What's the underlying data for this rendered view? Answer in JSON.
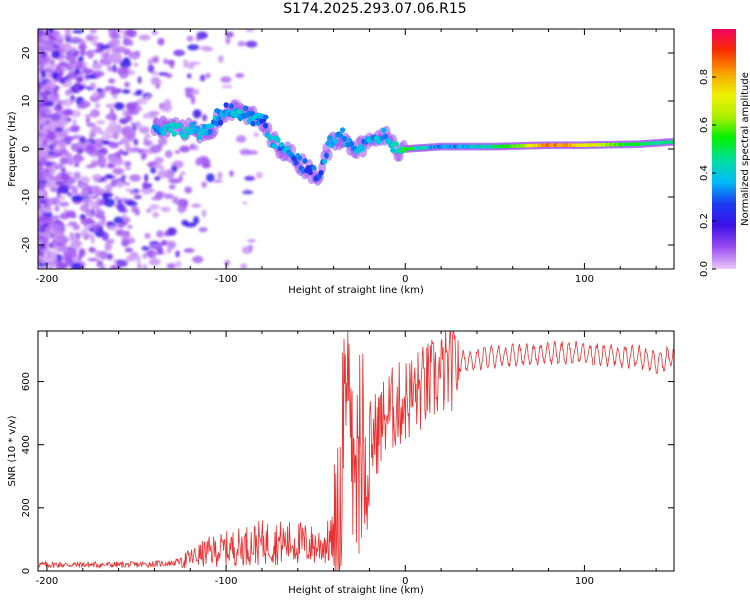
{
  "title": "S174.2025.293.07.06.R15",
  "chart_data": [
    {
      "type": "heatmap",
      "xlabel": "Height of straight line (km)",
      "ylabel": "Frequency (Hz)",
      "xlim": [
        -205,
        150
      ],
      "ylim": [
        -25,
        25
      ],
      "xticks": [
        -200,
        -100,
        0,
        100
      ],
      "yticks": [
        -20,
        -10,
        0,
        10,
        20
      ],
      "colorbar": {
        "label": "Normalized spectral amplitude",
        "range": [
          0,
          1
        ],
        "ticks": [
          0.0,
          0.2,
          0.4,
          0.6,
          0.8
        ],
        "tick_labels": [
          "0.0",
          "0.2",
          "0.4",
          "0.6",
          "0.8"
        ],
        "colormap": [
          "#e8c8f8",
          "#9a4cf0",
          "#3a10e8",
          "#1a3cf0",
          "#00bcf8",
          "#00e0a0",
          "#00f000",
          "#b0f000",
          "#f0f000",
          "#f8a000",
          "#f83000",
          "#f00060"
        ]
      },
      "ridge": [
        {
          "x": -140,
          "f": 4.5,
          "a": 0.35
        },
        {
          "x": -125,
          "f": 4.0,
          "a": 0.4
        },
        {
          "x": -110,
          "f": 3.5,
          "a": 0.35
        },
        {
          "x": -100,
          "f": 8.0,
          "a": 0.3
        },
        {
          "x": -90,
          "f": 7.5,
          "a": 0.35
        },
        {
          "x": -80,
          "f": 5.5,
          "a": 0.3
        },
        {
          "x": -75,
          "f": 2.0,
          "a": 0.35
        },
        {
          "x": -68,
          "f": 0.0,
          "a": 0.35
        },
        {
          "x": -62,
          "f": -2.0,
          "a": 0.3
        },
        {
          "x": -55,
          "f": -4.0,
          "a": 0.3
        },
        {
          "x": -48,
          "f": -5.5,
          "a": 0.3
        },
        {
          "x": -42,
          "f": 1.0,
          "a": 0.35
        },
        {
          "x": -35,
          "f": 3.0,
          "a": 0.35
        },
        {
          "x": -28,
          "f": 0.0,
          "a": 0.35
        },
        {
          "x": -20,
          "f": 1.0,
          "a": 0.35
        },
        {
          "x": -12,
          "f": 3.0,
          "a": 0.35
        },
        {
          "x": -5,
          "f": 0.0,
          "a": 0.4
        },
        {
          "x": 0,
          "f": 0.0,
          "a": 0.55
        },
        {
          "x": 20,
          "f": 0.5,
          "a": 0.3
        },
        {
          "x": 50,
          "f": 0.5,
          "a": 0.45
        },
        {
          "x": 80,
          "f": 0.8,
          "a": 0.85
        },
        {
          "x": 100,
          "f": 0.8,
          "a": 0.75
        },
        {
          "x": 130,
          "f": 1.0,
          "a": 0.5
        },
        {
          "x": 150,
          "f": 1.5,
          "a": 0.45
        }
      ]
    },
    {
      "type": "line",
      "xlabel": "Height of straight line (km)",
      "ylabel": "SNR (10 * v/v)",
      "xlim": [
        -205,
        150
      ],
      "ylim": [
        0,
        760
      ],
      "xticks": [
        -200,
        -100,
        0,
        100
      ],
      "yticks": [
        0,
        200,
        400,
        600
      ],
      "series": [
        {
          "name": "SNR",
          "color": "#e8302f",
          "x": [
            -205,
            -180,
            -150,
            -130,
            -120,
            -110,
            -100,
            -90,
            -80,
            -70,
            -60,
            -50,
            -45,
            -40,
            -35,
            -32,
            -30,
            -28,
            -25,
            -22,
            -20,
            -15,
            -10,
            -5,
            0,
            5,
            10,
            15,
            20,
            25,
            30,
            40,
            50,
            60,
            80,
            100,
            120,
            130,
            140,
            150
          ],
          "y": [
            20,
            20,
            20,
            25,
            40,
            60,
            70,
            80,
            90,
            90,
            90,
            80,
            85,
            100,
            200,
            750,
            400,
            200,
            300,
            350,
            400,
            450,
            500,
            520,
            540,
            560,
            580,
            600,
            620,
            640,
            660,
            670,
            680,
            680,
            690,
            690,
            680,
            680,
            660,
            680
          ]
        }
      ]
    }
  ]
}
